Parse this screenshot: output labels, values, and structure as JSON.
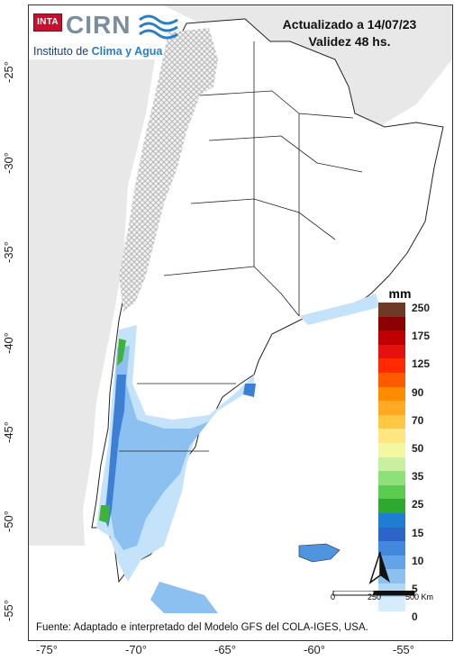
{
  "logo": {
    "inta": "INTA",
    "cirn": "CIRN",
    "institute_prefix": "Instituto de ",
    "institute_highlight": "Clima y Agua"
  },
  "header": {
    "updated": "Actualizado a 14/07/23",
    "validity": "Validez 48 hs."
  },
  "legend": {
    "unit": "mm",
    "entries": [
      {
        "label": "250",
        "color": "#6e3a27"
      },
      {
        "label": "",
        "color": "#8b0000"
      },
      {
        "label": "175",
        "color": "#c00000"
      },
      {
        "label": "",
        "color": "#e51010"
      },
      {
        "label": "125",
        "color": "#ff2a00"
      },
      {
        "label": "",
        "color": "#ff5a00"
      },
      {
        "label": "90",
        "color": "#ff8c00"
      },
      {
        "label": "",
        "color": "#ffaa22"
      },
      {
        "label": "70",
        "color": "#ffc844"
      },
      {
        "label": "",
        "color": "#ffe680"
      },
      {
        "label": "50",
        "color": "#f2f7a0"
      },
      {
        "label": "",
        "color": "#c8f0a0"
      },
      {
        "label": "35",
        "color": "#8ee078"
      },
      {
        "label": "",
        "color": "#5ccc50"
      },
      {
        "label": "25",
        "color": "#2fa830"
      },
      {
        "label": "",
        "color": "#1e7fd2"
      },
      {
        "label": "15",
        "color": "#2c64c8"
      },
      {
        "label": "",
        "color": "#4288dc"
      },
      {
        "label": "10",
        "color": "#63a4e8"
      },
      {
        "label": "",
        "color": "#8cc0f0"
      },
      {
        "label": "5",
        "color": "#b2d8f8"
      },
      {
        "label": "",
        "color": "#d4ecfc"
      },
      {
        "label": "0",
        "color": "#ffffff"
      }
    ]
  },
  "scale": {
    "labels": [
      "0",
      "250",
      "500 Km"
    ]
  },
  "source": "Fuente: Adaptado e interpretado del Modelo GFS del COLA-IGES, USA.",
  "axes": {
    "lat_labels": [
      "-25°",
      "-30°",
      "-35°",
      "-40°",
      "-45°",
      "-50°",
      "-55°"
    ],
    "lon_labels": [
      "-75°",
      "-70°",
      "-65°",
      "-60°",
      "-55°"
    ]
  },
  "colors": {
    "land": "#ffffff",
    "outside": "#e6e6e6",
    "border": "#222222",
    "no_data_hatch": "#bfbfbf"
  }
}
